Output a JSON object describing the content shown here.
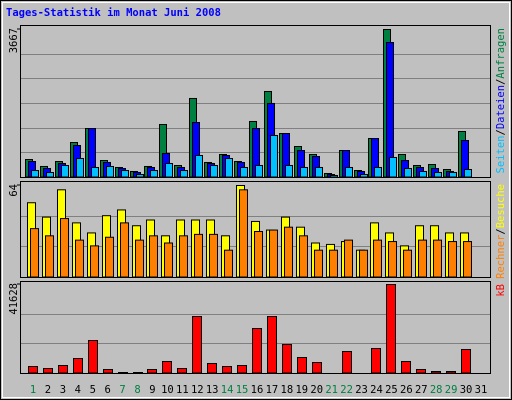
{
  "chart_data": [
    {
      "type": "bar",
      "title": "Tages-Statistik im Monat Juni 2008",
      "ylim": [
        0,
        3667
      ],
      "yticks": [
        3667
      ],
      "series": [
        {
          "name": "Anfragen",
          "color": "#008040",
          "values": [
            446,
            273,
            396,
            867,
            1214,
            421,
            248,
            149,
            273,
            1313,
            297,
            1958,
            372,
            570,
            396,
            1388,
            2131,
            1090,
            768,
            570,
            99,
            669,
            173,
            966,
            3667,
            570,
            297,
            322,
            198,
            1140,
            0
          ]
        },
        {
          "name": "Dateien",
          "color": "#0000ff",
          "values": [
            396,
            223,
            347,
            793,
            1214,
            372,
            223,
            124,
            248,
            595,
            248,
            1363,
            347,
            545,
            372,
            1214,
            1834,
            1090,
            669,
            520,
            74,
            669,
            149,
            966,
            3345,
            421,
            248,
            223,
            149,
            917,
            0
          ]
        },
        {
          "name": "Seiten",
          "color": "#00c0ff",
          "values": [
            173,
            124,
            297,
            471,
            248,
            273,
            173,
            74,
            173,
            347,
            173,
            545,
            297,
            471,
            248,
            297,
            1041,
            297,
            248,
            248,
            50,
            248,
            74,
            248,
            496,
            223,
            149,
            124,
            124,
            198,
            0
          ]
        }
      ]
    },
    {
      "type": "bar",
      "ylim": [
        0,
        64
      ],
      "yticks": [
        64
      ],
      "series": [
        {
          "name": "Besuche",
          "color": "#ffff00",
          "values": [
            52,
            42,
            61,
            38,
            31,
            43,
            47,
            36,
            40,
            29,
            40,
            40,
            40,
            29,
            64,
            39,
            33,
            42,
            35,
            24,
            23,
            25,
            19,
            38,
            31,
            22,
            36,
            36,
            31,
            31,
            0
          ]
        },
        {
          "name": "Rechner",
          "color": "#ff8000",
          "values": [
            34,
            29,
            41,
            26,
            22,
            28,
            38,
            26,
            29,
            24,
            29,
            30,
            30,
            19,
            61,
            32,
            33,
            35,
            29,
            19,
            19,
            26,
            19,
            26,
            25,
            19,
            26,
            26,
            25,
            25,
            0
          ]
        }
      ]
    },
    {
      "type": "bar",
      "ylim": [
        0,
        41628
      ],
      "yticks": [
        41628
      ],
      "categories": [
        "1",
        "2",
        "3",
        "4",
        "5",
        "6",
        "7",
        "8",
        "9",
        "10",
        "11",
        "12",
        "13",
        "14",
        "15",
        "16",
        "17",
        "18",
        "19",
        "20",
        "21",
        "22",
        "23",
        "24",
        "25",
        "26",
        "27",
        "28",
        "29",
        "30",
        "31"
      ],
      "label_colors": [
        "#008040",
        "#000000",
        "#000000",
        "#000000",
        "#000000",
        "#000000",
        "#008040",
        "#008040",
        "#000000",
        "#000000",
        "#000000",
        "#000000",
        "#000000",
        "#008040",
        "#008040",
        "#000000",
        "#000000",
        "#000000",
        "#000000",
        "#000000",
        "#008040",
        "#008040",
        "#000000",
        "#000000",
        "#000000",
        "#000000",
        "#000000",
        "#008040",
        "#008040",
        "#000000",
        "#000000"
      ],
      "series": [
        {
          "name": "kB",
          "color": "#ff0000",
          "values": [
            3274,
            2338,
            3742,
            7015,
            15434,
            1871,
            468,
            468,
            1871,
            5612,
            2338,
            26659,
            4677,
            3274,
            3742,
            21047,
            26659,
            13563,
            7483,
            5145,
            200,
            10289,
            200,
            11692,
            41628,
            5612,
            1871,
            935,
            935,
            11225,
            0
          ]
        }
      ]
    }
  ]
}
